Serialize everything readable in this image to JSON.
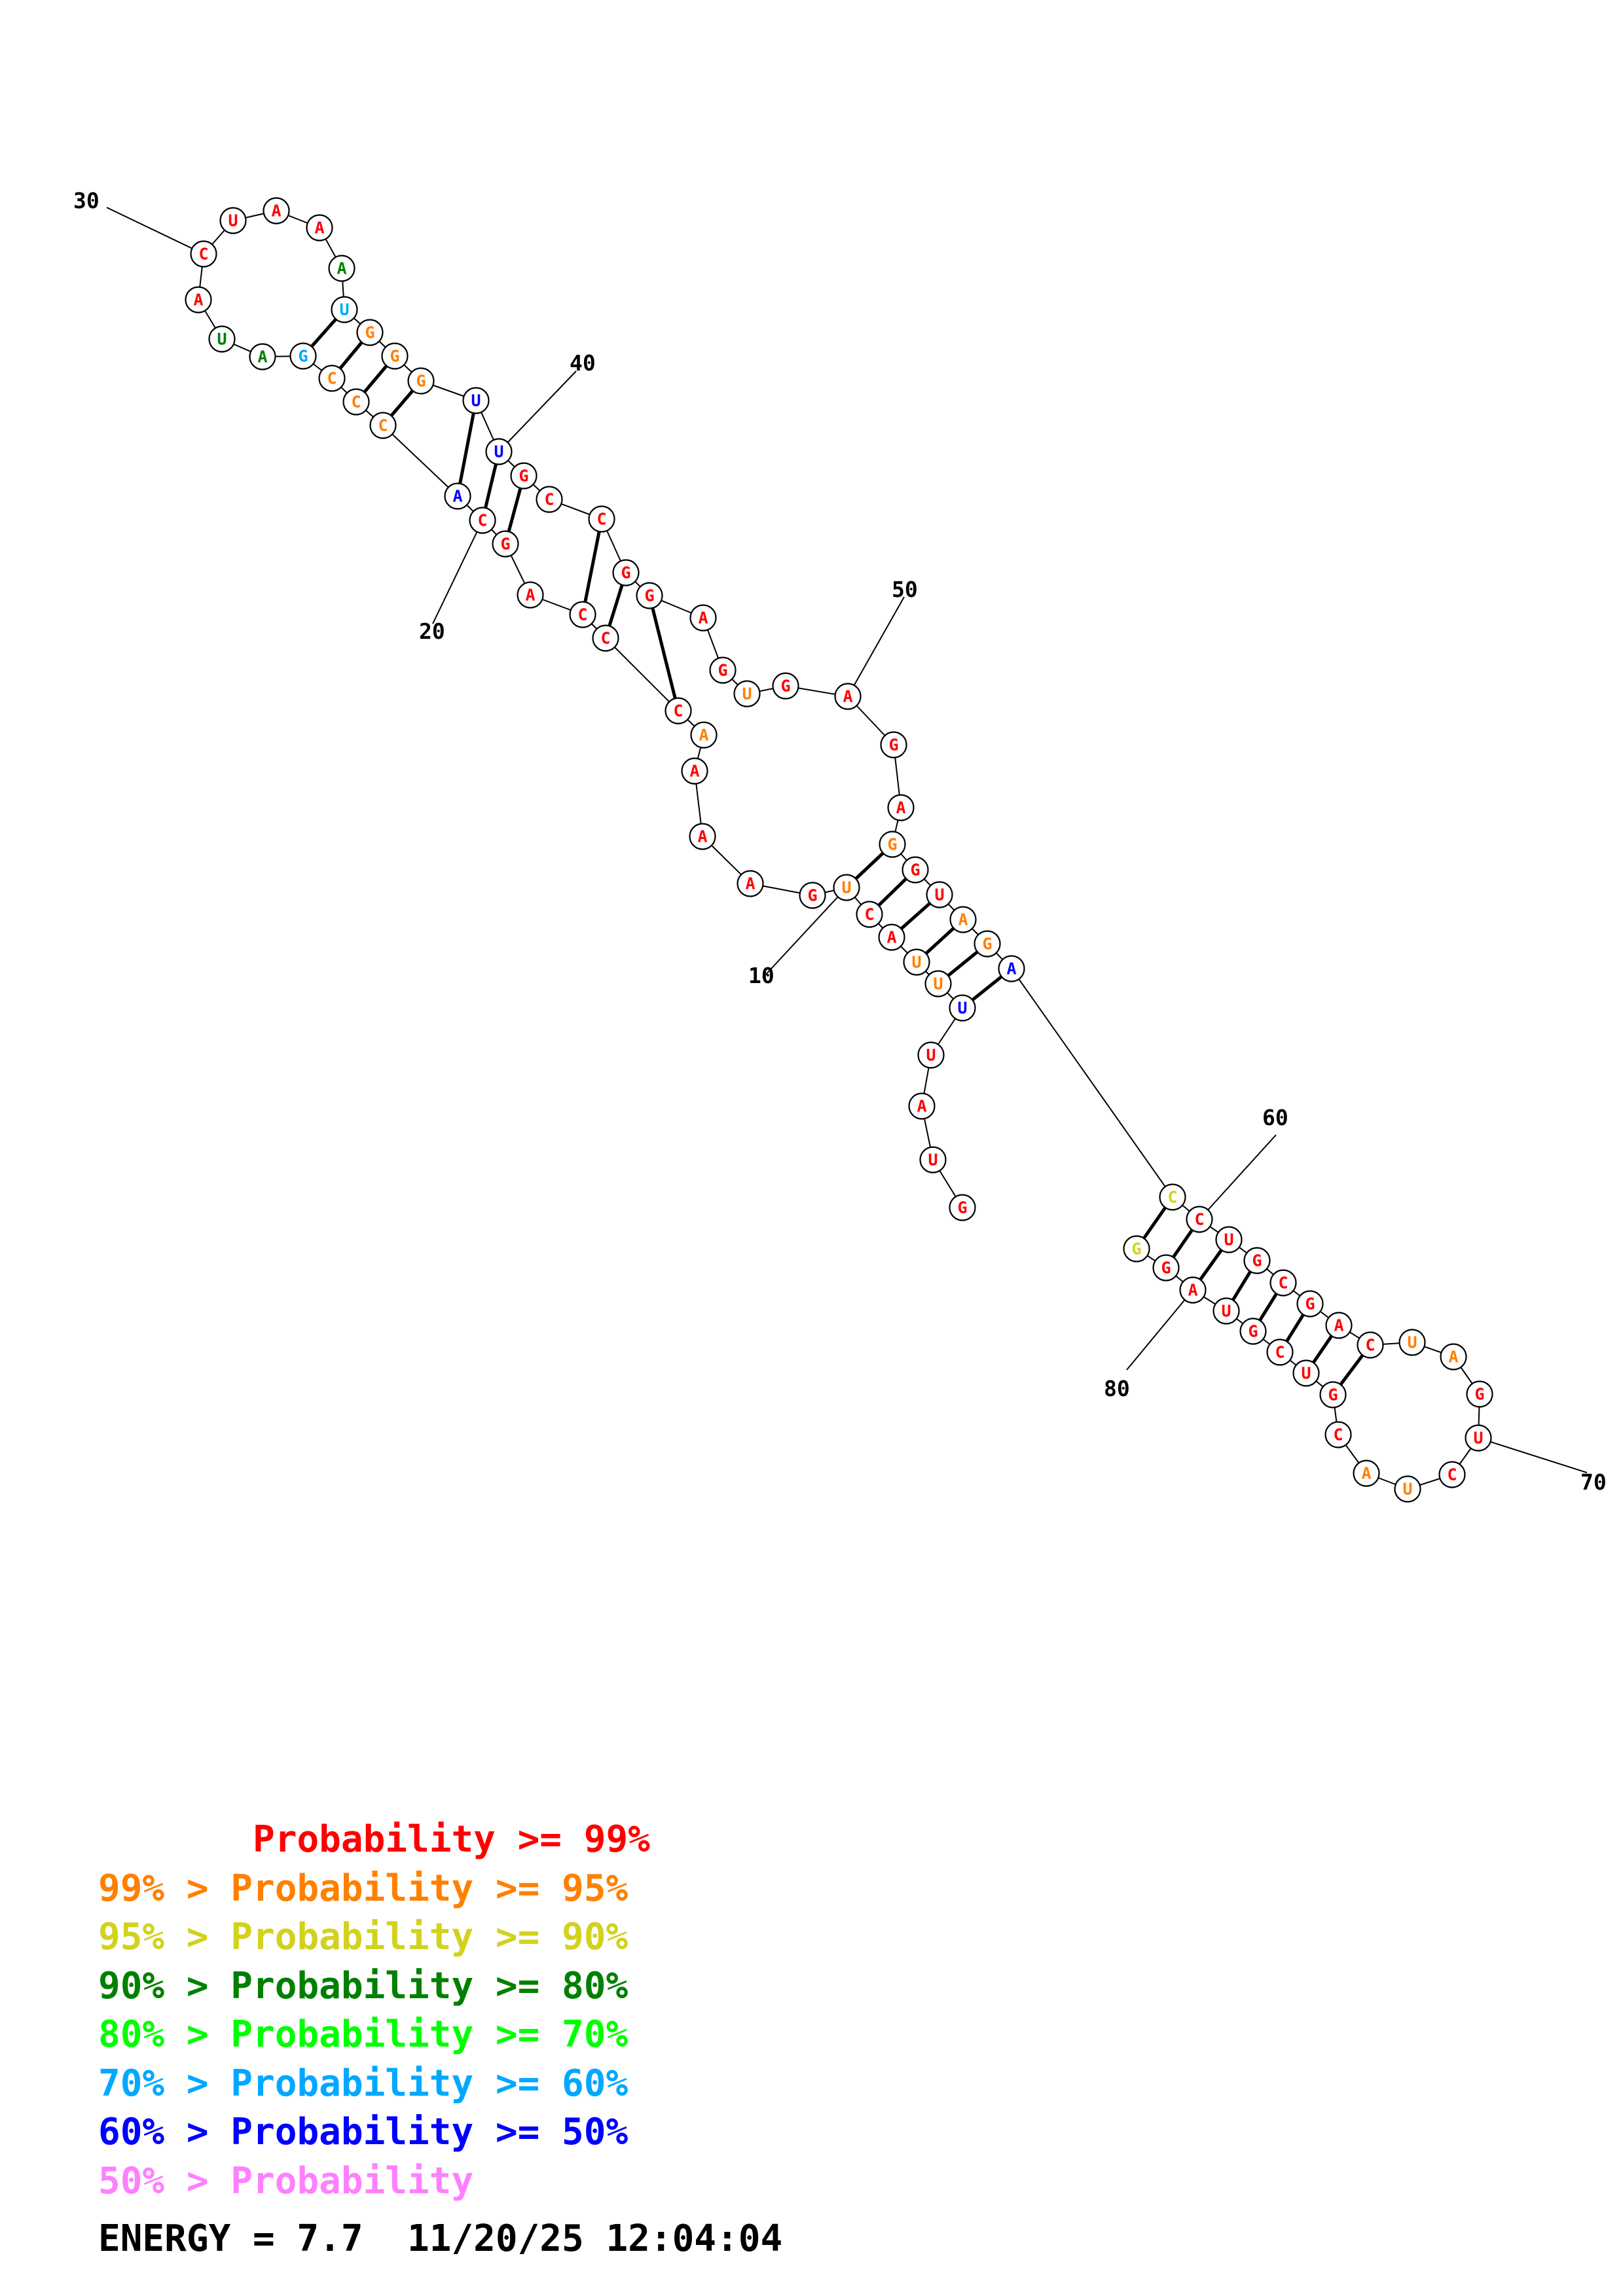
{
  "palette": {
    "red": "#ff0000",
    "orange": "#ff8000",
    "yellow": "#d2d21e",
    "darkgreen": "#008000",
    "green": "#00ff00",
    "cyan": "#00a8ff",
    "blue": "#0000ff",
    "pink": "#ff80ff"
  },
  "sequence": [
    {
      "n": 1,
      "base": "G",
      "color": "red"
    },
    {
      "n": 2,
      "base": "U",
      "color": "red"
    },
    {
      "n": 3,
      "base": "A",
      "color": "red"
    },
    {
      "n": 4,
      "base": "U",
      "color": "red"
    },
    {
      "n": 5,
      "base": "U",
      "color": "blue"
    },
    {
      "n": 6,
      "base": "U",
      "color": "orange"
    },
    {
      "n": 7,
      "base": "U",
      "color": "orange"
    },
    {
      "n": 8,
      "base": "A",
      "color": "red"
    },
    {
      "n": 9,
      "base": "C",
      "color": "red"
    },
    {
      "n": 10,
      "base": "U",
      "color": "orange"
    },
    {
      "n": 11,
      "base": "G",
      "color": "red"
    },
    {
      "n": 12,
      "base": "A",
      "color": "red"
    },
    {
      "n": 13,
      "base": "A",
      "color": "red"
    },
    {
      "n": 14,
      "base": "A",
      "color": "red"
    },
    {
      "n": 15,
      "base": "A",
      "color": "orange"
    },
    {
      "n": 16,
      "base": "C",
      "color": "red"
    },
    {
      "n": 17,
      "base": "C",
      "color": "red"
    },
    {
      "n": 18,
      "base": "C",
      "color": "red"
    },
    {
      "n": 19,
      "base": "A",
      "color": "red"
    },
    {
      "n": 20,
      "base": "G",
      "color": "red"
    },
    {
      "n": 21,
      "base": "C",
      "color": "red"
    },
    {
      "n": 22,
      "base": "A",
      "color": "blue"
    },
    {
      "n": 23,
      "base": "C",
      "color": "orange"
    },
    {
      "n": 24,
      "base": "C",
      "color": "orange"
    },
    {
      "n": 25,
      "base": "C",
      "color": "orange"
    },
    {
      "n": 26,
      "base": "G",
      "color": "cyan"
    },
    {
      "n": 27,
      "base": "A",
      "color": "darkgreen"
    },
    {
      "n": 28,
      "base": "U",
      "color": "darkgreen"
    },
    {
      "n": 29,
      "base": "A",
      "color": "red"
    },
    {
      "n": 30,
      "base": "C",
      "color": "red"
    },
    {
      "n": 31,
      "base": "U",
      "color": "red"
    },
    {
      "n": 32,
      "base": "A",
      "color": "red"
    },
    {
      "n": 33,
      "base": "A",
      "color": "red"
    },
    {
      "n": 34,
      "base": "A",
      "color": "darkgreen"
    },
    {
      "n": 35,
      "base": "U",
      "color": "cyan"
    },
    {
      "n": 36,
      "base": "G",
      "color": "orange"
    },
    {
      "n": 37,
      "base": "G",
      "color": "orange"
    },
    {
      "n": 38,
      "base": "G",
      "color": "orange"
    },
    {
      "n": 39,
      "base": "U",
      "color": "blue"
    },
    {
      "n": 40,
      "base": "U",
      "color": "blue"
    },
    {
      "n": 41,
      "base": "G",
      "color": "red"
    },
    {
      "n": 42,
      "base": "C",
      "color": "red"
    },
    {
      "n": 43,
      "base": "C",
      "color": "red"
    },
    {
      "n": 44,
      "base": "G",
      "color": "red"
    },
    {
      "n": 45,
      "base": "G",
      "color": "red"
    },
    {
      "n": 46,
      "base": "A",
      "color": "red"
    },
    {
      "n": 47,
      "base": "G",
      "color": "red"
    },
    {
      "n": 48,
      "base": "U",
      "color": "orange"
    },
    {
      "n": 49,
      "base": "G",
      "color": "red"
    },
    {
      "n": 50,
      "base": "A",
      "color": "red"
    },
    {
      "n": 51,
      "base": "G",
      "color": "red"
    },
    {
      "n": 52,
      "base": "A",
      "color": "red"
    },
    {
      "n": 53,
      "base": "G",
      "color": "orange"
    },
    {
      "n": 54,
      "base": "G",
      "color": "red"
    },
    {
      "n": 55,
      "base": "U",
      "color": "red"
    },
    {
      "n": 56,
      "base": "A",
      "color": "orange"
    },
    {
      "n": 57,
      "base": "G",
      "color": "orange"
    },
    {
      "n": 58,
      "base": "A",
      "color": "blue"
    },
    {
      "n": 59,
      "base": "C",
      "color": "yellow"
    },
    {
      "n": 60,
      "base": "C",
      "color": "red"
    },
    {
      "n": 61,
      "base": "U",
      "color": "red"
    },
    {
      "n": 62,
      "base": "G",
      "color": "red"
    },
    {
      "n": 63,
      "base": "C",
      "color": "red"
    },
    {
      "n": 64,
      "base": "G",
      "color": "red"
    },
    {
      "n": 65,
      "base": "A",
      "color": "red"
    },
    {
      "n": 66,
      "base": "C",
      "color": "red"
    },
    {
      "n": 67,
      "base": "U",
      "color": "orange"
    },
    {
      "n": 68,
      "base": "A",
      "color": "orange"
    },
    {
      "n": 69,
      "base": "G",
      "color": "red"
    },
    {
      "n": 70,
      "base": "U",
      "color": "red"
    },
    {
      "n": 71,
      "base": "C",
      "color": "red"
    },
    {
      "n": 72,
      "base": "U",
      "color": "orange"
    },
    {
      "n": 73,
      "base": "A",
      "color": "orange"
    },
    {
      "n": 74,
      "base": "C",
      "color": "red"
    },
    {
      "n": 75,
      "base": "G",
      "color": "red"
    },
    {
      "n": 76,
      "base": "U",
      "color": "red"
    },
    {
      "n": 77,
      "base": "C",
      "color": "red"
    },
    {
      "n": 78,
      "base": "G",
      "color": "red"
    },
    {
      "n": 79,
      "base": "U",
      "color": "red"
    },
    {
      "n": 80,
      "base": "A",
      "color": "red"
    },
    {
      "n": 81,
      "base": "G",
      "color": "red"
    },
    {
      "n": 82,
      "base": "G",
      "color": "yellow"
    }
  ],
  "pairs": [
    [
      5,
      58
    ],
    [
      6,
      57
    ],
    [
      7,
      56
    ],
    [
      8,
      55
    ],
    [
      9,
      54
    ],
    [
      10,
      53
    ],
    [
      16,
      45
    ],
    [
      17,
      44
    ],
    [
      18,
      43
    ],
    [
      20,
      41
    ],
    [
      21,
      40
    ],
    [
      22,
      39
    ],
    [
      23,
      38
    ],
    [
      24,
      37
    ],
    [
      25,
      36
    ],
    [
      26,
      35
    ],
    [
      59,
      82
    ],
    [
      60,
      81
    ],
    [
      61,
      80
    ],
    [
      62,
      79
    ],
    [
      63,
      78
    ],
    [
      64,
      77
    ],
    [
      65,
      76
    ],
    [
      66,
      75
    ]
  ],
  "index_labels": [
    "10",
    "20",
    "30",
    "40",
    "50",
    "60",
    "70",
    "80"
  ],
  "legend": [
    {
      "prefix": "       ",
      "text": "Probability >= 99%",
      "color": "red"
    },
    {
      "prefix": "99% > ",
      "text": "Probability >= 95%",
      "color": "orange"
    },
    {
      "prefix": "95% > ",
      "text": "Probability >= 90%",
      "color": "yellow"
    },
    {
      "prefix": "90% > ",
      "text": "Probability >= 80%",
      "color": "darkgreen"
    },
    {
      "prefix": "80% > ",
      "text": "Probability >= 70%",
      "color": "green"
    },
    {
      "prefix": "70% > ",
      "text": "Probability >= 60%",
      "color": "cyan"
    },
    {
      "prefix": "60% > ",
      "text": "Probability >= 50%",
      "color": "blue"
    },
    {
      "prefix": "50% > ",
      "text": "Probability",
      "color": "pink"
    }
  ],
  "footer": {
    "energy": "ENERGY = 7.7",
    "timestamp": "11/20/25 12:04:04"
  }
}
